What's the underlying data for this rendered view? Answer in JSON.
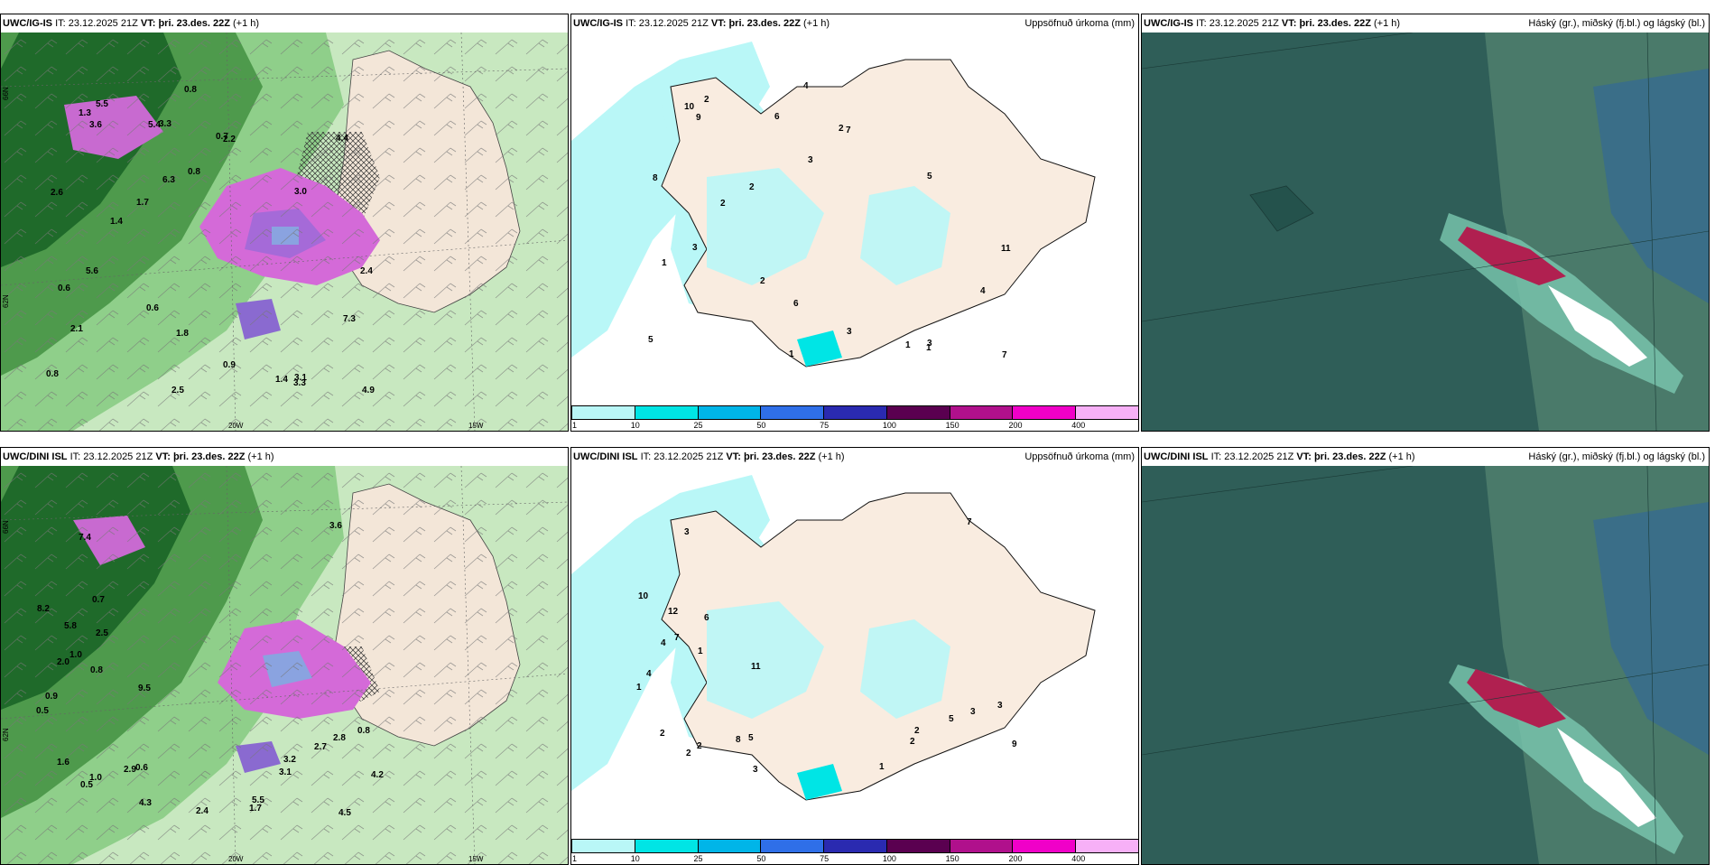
{
  "panels": [
    {
      "model": "UWC/IG-IS",
      "it_label": "IT:",
      "it": "23.12.2025 21Z",
      "vt_label": "VT:",
      "vt": "þri. 23.des. 22Z",
      "lead": "(+1 h)",
      "right": ""
    },
    {
      "model": "UWC/IG-IS",
      "it_label": "IT:",
      "it": "23.12.2025 21Z",
      "vt_label": "VT:",
      "vt": "þri. 23.des. 22Z",
      "lead": "(+1 h)",
      "right": "Uppsöfnuð úrkoma (mm)"
    },
    {
      "model": "UWC/IG-IS",
      "it_label": "IT:",
      "it": "23.12.2025 21Z",
      "vt_label": "VT:",
      "vt": "þri. 23.des. 22Z",
      "lead": "(+1 h)",
      "right": "Háský (gr.), miðský (fj.bl.) og lágský (bl.)"
    },
    {
      "model": "UWC/DINI ISL",
      "it_label": "IT:",
      "it": "23.12.2025 21Z",
      "vt_label": "VT:",
      "vt": "þri. 23.des. 22Z",
      "lead": "(+1 h)",
      "right": ""
    },
    {
      "model": "UWC/DINI ISL",
      "it_label": "IT:",
      "it": "23.12.2025 21Z",
      "vt_label": "VT:",
      "vt": "þri. 23.des. 22Z",
      "lead": "(+1 h)",
      "right": "Uppsöfnuð úrkoma (mm)"
    },
    {
      "model": "UWC/DINI ISL",
      "it_label": "IT:",
      "it": "23.12.2025 21Z",
      "vt_label": "VT:",
      "vt": "þri. 23.des. 22Z",
      "lead": "(+1 h)",
      "right": "Háský (gr.), miðský (fj.bl.) og lágský (bl.)"
    }
  ],
  "axis_labels": {
    "lat66": "66N",
    "lat64": "64N",
    "lat62": "62N",
    "lon20": "20W",
    "lon15": "15W"
  },
  "colorbar": {
    "colors": [
      "#b9f7f7",
      "#00e5e5",
      "#00b5e8",
      "#2f6fe8",
      "#2a2ab0",
      "#5a0050",
      "#b0108c",
      "#f000c8",
      "#f7b0f7"
    ],
    "ticks": [
      "1",
      "10",
      "25",
      "50",
      "75",
      "100",
      "150",
      "200",
      "400"
    ]
  },
  "wind_labels_top": [
    "1.4",
    "1.4",
    "3.0",
    "3.1",
    "0.8",
    "0.8",
    "0.6",
    "2.5",
    "1.3",
    "3.3",
    "4.9",
    "3.6",
    "5.6",
    "1.7",
    "7.3",
    "2.6",
    "2.4",
    "2.2",
    "1.8",
    "0.8",
    "0.9",
    "0.7",
    "0.6",
    "5.5",
    "3.3",
    "5.4",
    "4.4",
    "6.3",
    "2.1"
  ],
  "wind_labels_bottom": [
    "2.8",
    "0.8",
    "1.6",
    "3.1",
    "1.0",
    "2.9",
    "4.3",
    "0.9",
    "5.8",
    "8.2",
    "7.4",
    "4.2",
    "2.5",
    "2.7",
    "2.0",
    "1.0",
    "0.6",
    "0.8",
    "0.5",
    "0.5",
    "3.2",
    "5.5",
    "9.5",
    "3.6",
    "4.5",
    "2.4",
    "1.7",
    "0.7"
  ],
  "precip_labels_top": [
    "2",
    "1",
    "5",
    "3",
    "4",
    "3",
    "2",
    "1",
    "10",
    "6",
    "7",
    "9",
    "3",
    "2",
    "4",
    "8",
    "11",
    "7",
    "6",
    "5",
    "3",
    "2",
    "1",
    "2",
    "1"
  ],
  "precip_labels_bottom": [
    "3",
    "1",
    "2",
    "2",
    "2",
    "8",
    "3",
    "4",
    "12",
    "10",
    "3",
    "9",
    "6",
    "5",
    "4",
    "7",
    "5",
    "3",
    "2",
    "1",
    "2",
    "1",
    "11",
    "7"
  ]
}
